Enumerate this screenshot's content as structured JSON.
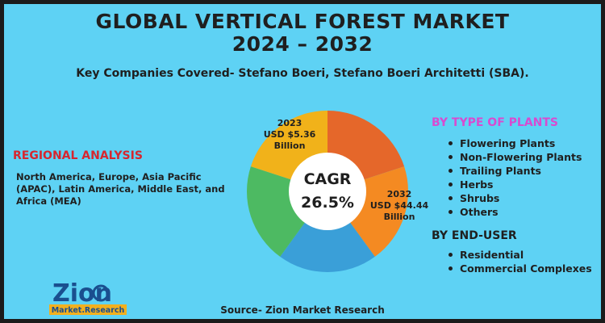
{
  "title_line1": "GLOBAL VERTICAL FOREST MARKET",
  "title_line2": "2024 – 2032",
  "subtitle": "Key Companies Covered- Stefano Boeri, Stefano Boeri Architetti (SBA).",
  "regional": {
    "heading": "REGIONAL ANALYSIS",
    "text": "North America, Europe, Asia Pacific (APAC), Latin America, Middle East, and Africa (MEA)"
  },
  "type_of_plants": {
    "heading": "BY TYPE OF PLANTS",
    "items": [
      "Flowering Plants",
      "Non-Flowering Plants",
      "Trailing Plants",
      "Herbs",
      "Shrubs",
      "Others"
    ]
  },
  "end_user": {
    "heading": "BY END-USER",
    "items": [
      "Residential",
      "Commercial Complexes"
    ]
  },
  "source": "Source- Zion Market Research",
  "logo": {
    "text_main": "Zion",
    "text_sub": "Market.Research"
  },
  "colors": {
    "background": "#5ed2f4",
    "regional_heading": "#d7262e",
    "plants_heading": "#d84bd0"
  },
  "chart_data": {
    "type": "pie",
    "style": "donut",
    "center_label": "CAGR",
    "center_value": "26.5%",
    "slices": [
      {
        "color": "#e5672a",
        "value": 20
      },
      {
        "color": "#f48a22",
        "value": 20
      },
      {
        "color": "#3a9fd8",
        "value": 20
      },
      {
        "color": "#4dba62",
        "value": 20
      },
      {
        "color": "#f1b21a",
        "value": 20
      }
    ],
    "annotations": {
      "year_2023": "2023",
      "value_2023": "USD $5.36",
      "unit_2023": "Billion",
      "year_2032": "2032",
      "value_2032": "USD $44.44",
      "unit_2032": "Billion"
    }
  }
}
